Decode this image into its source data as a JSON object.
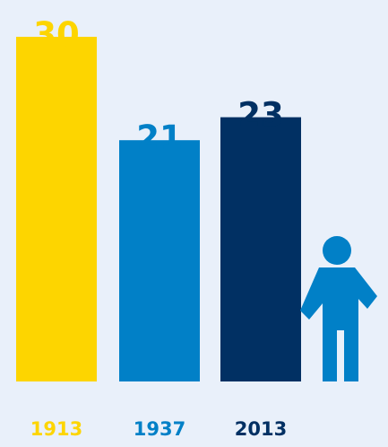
{
  "chart_data": {
    "type": "bar",
    "categories": [
      "1913",
      "1937",
      "2013"
    ],
    "values": [
      30,
      21,
      23
    ],
    "data_labels": [
      "30",
      "21",
      "23"
    ],
    "category_colors": [
      "#FDD500",
      "#0180C7",
      "#013063"
    ],
    "ylim": [
      0,
      30
    ],
    "grid": false,
    "legend": "none",
    "title": "",
    "xlabel": "",
    "ylabel": ""
  },
  "decoration": {
    "icon": "person-icon",
    "icon_color": "#0180C7"
  },
  "colors": {
    "background": "#E9F0FA"
  }
}
